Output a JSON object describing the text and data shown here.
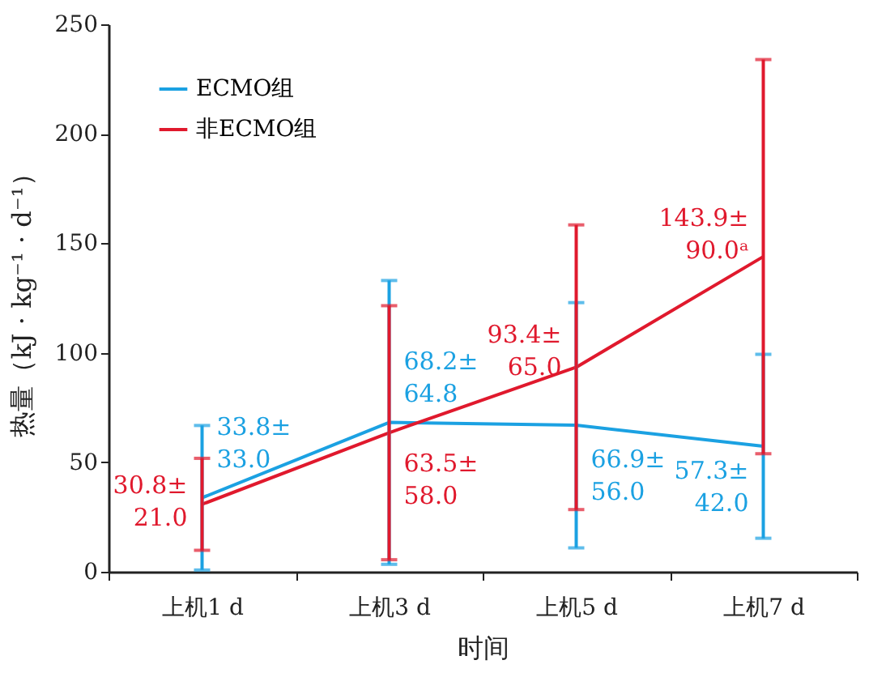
{
  "chart_data": {
    "type": "line",
    "xlabel": "时间",
    "ylabel": "热量（kJ · kg⁻¹ · d⁻¹）",
    "categories": [
      "上机1 d",
      "上机3 d",
      "上机5 d",
      "上机7 d"
    ],
    "ylim": [
      0,
      250
    ],
    "yticks": [
      0,
      50,
      100,
      150,
      200,
      250
    ],
    "grid": false,
    "legend": "top left",
    "marker": "none",
    "line_style": "solid",
    "series": [
      {
        "name": "ECMO组",
        "color": "#1ba1e2",
        "values": [
          33.8,
          68.2,
          66.9,
          57.3
        ],
        "errors": [
          33.0,
          64.8,
          56.0,
          42.0
        ],
        "value_labels": [
          "33.8±\n33.0",
          "68.2±\n64.8",
          "66.9±\n56.0",
          "57.3±\n42.0"
        ]
      },
      {
        "name": "非ECMO组",
        "color": "#e0192d",
        "values": [
          30.8,
          63.5,
          93.4,
          143.9
        ],
        "errors": [
          21.0,
          58.0,
          65.0,
          90.0
        ],
        "value_labels": [
          "30.8±\n21.0",
          "63.5±\n58.0",
          "93.4±\n65.0",
          "143.9±\n90.0ᵃ"
        ]
      }
    ]
  }
}
